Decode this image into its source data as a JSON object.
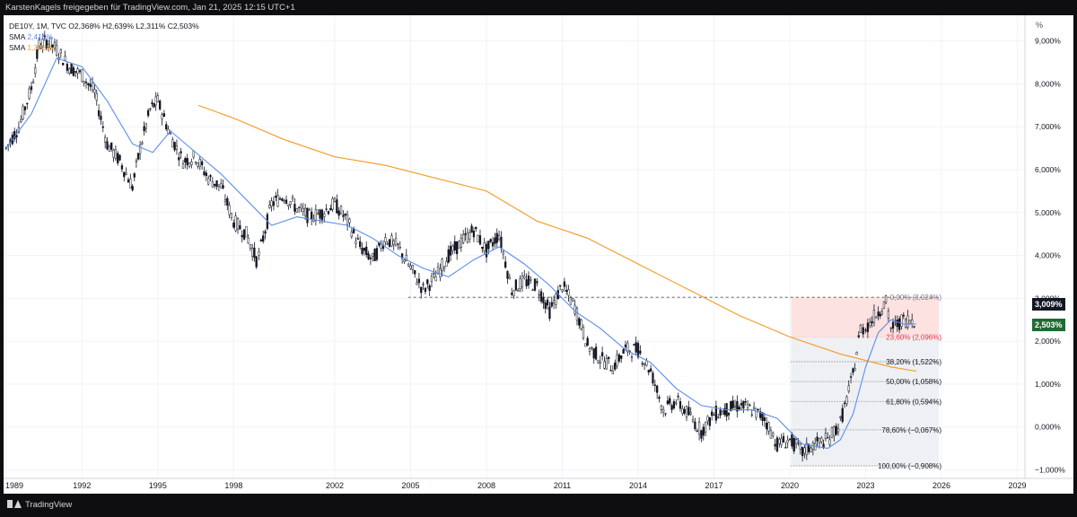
{
  "header": {
    "text": "KarstenKagels freigegeben für TradingView.com, Jan 21, 2025 12:15 UTC+1"
  },
  "legend": {
    "symbol_line": "DE10Y, 1M, TVC  O2,368%  H2,639%  L2,311%  C2,503%",
    "sma1_label": "SMA",
    "sma1_value": "2,410%",
    "sma2_label": "SMA",
    "sma2_value": "1,328%"
  },
  "axis": {
    "unit": "%",
    "price_labels": [
      "9,000%",
      "8,000%",
      "7,000%",
      "6,000%",
      "5,000%",
      "4,000%",
      "3,000%",
      "2,000%",
      "1,000%",
      "0,000%",
      "−1,000%"
    ],
    "year_labels": [
      "1989",
      "1992",
      "1995",
      "1998",
      "2002",
      "2005",
      "2008",
      "2011",
      "2014",
      "2017",
      "2020",
      "2023",
      "2026",
      "2029"
    ]
  },
  "price_badges": {
    "max": "3,009%",
    "last": "2,503%"
  },
  "fib_levels": [
    {
      "label": "0,00% (3,024%)",
      "value": 3.024,
      "color": "#787b86"
    },
    {
      "label": "23,60% (2,096%)",
      "value": 2.096,
      "color": "#f23645"
    },
    {
      "label": "38,20% (1,522%)",
      "value": 1.522,
      "color": "#131722"
    },
    {
      "label": "50,00% (1,058%)",
      "value": 1.058,
      "color": "#131722"
    },
    {
      "label": "61,80% (0,594%)",
      "value": 0.594,
      "color": "#131722"
    },
    {
      "label": "78,60% (−0,067%)",
      "value": -0.067,
      "color": "#131722"
    },
    {
      "label": "100,00% (−0,908%)",
      "value": -0.908,
      "color": "#131722"
    }
  ],
  "footer": {
    "brand": "TradingView"
  },
  "colors": {
    "candle": "#131722",
    "sma_fast": "#5b8def",
    "sma_slow": "#f59a23",
    "fib_zone_top": "#fde2e2",
    "fib_zone_bottom": "#eef0f3"
  },
  "chart_data": {
    "type": "line",
    "title": "DE10Y, 1M, TVC",
    "xlabel": "",
    "ylabel": "%",
    "ylim": [
      -1.2,
      9.6
    ],
    "x_range": [
      1988.9,
      2029.3
    ],
    "y_ticks": [
      9,
      8,
      7,
      6,
      5,
      4,
      3,
      2,
      1,
      0,
      -1
    ],
    "x_ticks": [
      1989,
      1992,
      1995,
      1998,
      2002,
      2005,
      2008,
      2011,
      2014,
      2017,
      2020,
      2023,
      2026,
      2029
    ],
    "grid": true,
    "series": [
      {
        "name": "DE10Y",
        "kind": "close",
        "x": [
          1989.0,
          1989.5,
          1990.0,
          1990.3,
          1990.6,
          1991.0,
          1991.5,
          1992.0,
          1992.5,
          1993.0,
          1993.5,
          1994.0,
          1994.3,
          1994.7,
          1995.0,
          1995.5,
          1996.0,
          1996.5,
          1997.0,
          1997.5,
          1998.0,
          1998.5,
          1998.9,
          1999.0,
          1999.5,
          2000.0,
          2000.5,
          2001.0,
          2001.5,
          2002.0,
          2002.5,
          2003.0,
          2003.5,
          2004.0,
          2004.5,
          2005.0,
          2005.5,
          2006.0,
          2006.5,
          2007.0,
          2007.5,
          2008.0,
          2008.5,
          2009.0,
          2009.5,
          2010.0,
          2010.5,
          2011.0,
          2011.5,
          2012.0,
          2012.5,
          2013.0,
          2013.5,
          2014.0,
          2014.5,
          2015.0,
          2015.5,
          2016.0,
          2016.5,
          2017.0,
          2017.5,
          2018.0,
          2018.5,
          2019.0,
          2019.5,
          2020.0,
          2020.5,
          2021.0,
          2021.5,
          2022.0,
          2022.5,
          2022.8,
          2023.0,
          2023.5,
          2023.8,
          2024.0,
          2024.5,
          2025.0
        ],
        "y": [
          6.5,
          7.0,
          7.9,
          8.9,
          9.0,
          8.8,
          8.4,
          8.2,
          7.8,
          6.6,
          6.2,
          5.6,
          6.5,
          7.4,
          7.6,
          6.8,
          6.2,
          6.3,
          5.8,
          5.6,
          4.8,
          4.5,
          3.9,
          4.0,
          5.2,
          5.4,
          5.1,
          4.9,
          5.0,
          5.2,
          4.8,
          4.2,
          3.9,
          4.4,
          4.2,
          3.7,
          3.2,
          3.5,
          4.0,
          4.3,
          4.6,
          4.1,
          4.5,
          3.2,
          3.4,
          3.3,
          2.7,
          3.3,
          2.8,
          1.9,
          1.6,
          1.4,
          1.8,
          1.8,
          1.3,
          0.4,
          0.6,
          0.3,
          -0.1,
          0.3,
          0.4,
          0.5,
          0.4,
          0.2,
          -0.4,
          -0.3,
          -0.6,
          -0.4,
          -0.3,
          0.1,
          1.2,
          2.3,
          2.3,
          2.7,
          2.9,
          2.3,
          2.5,
          2.5
        ]
      },
      {
        "name": "SMA 2,410%",
        "kind": "sma",
        "x": [
          1989.0,
          1990.0,
          1991.0,
          1992.0,
          1993.0,
          1994.0,
          1994.8,
          1995.5,
          1996.5,
          1997.5,
          1998.5,
          1999.5,
          2000.5,
          2001.5,
          2002.5,
          2003.5,
          2004.5,
          2005.5,
          2006.5,
          2007.5,
          2008.5,
          2009.5,
          2010.5,
          2011.5,
          2012.5,
          2013.5,
          2014.5,
          2015.5,
          2016.5,
          2017.5,
          2018.5,
          2019.5,
          2020.5,
          2021.5,
          2022.0,
          2022.5,
          2023.0,
          2023.5,
          2024.0,
          2024.5,
          2025.0
        ],
        "y": [
          6.5,
          7.3,
          8.6,
          8.4,
          7.6,
          6.6,
          6.4,
          6.9,
          6.4,
          5.9,
          5.3,
          4.7,
          4.9,
          4.8,
          4.7,
          4.4,
          4.0,
          3.7,
          3.5,
          3.9,
          4.2,
          3.8,
          3.3,
          2.7,
          2.3,
          1.8,
          1.5,
          0.9,
          0.5,
          0.4,
          0.4,
          0.2,
          -0.4,
          -0.5,
          -0.3,
          0.3,
          1.4,
          2.2,
          2.5,
          2.4,
          2.4
        ]
      },
      {
        "name": "SMA 1,328%",
        "kind": "sma",
        "x": [
          1996.6,
          1998.0,
          2000.0,
          2002.0,
          2004.0,
          2006.0,
          2008.0,
          2010.0,
          2012.0,
          2014.0,
          2016.0,
          2018.0,
          2020.0,
          2022.0,
          2024.0,
          2025.0
        ],
        "y": [
          7.5,
          7.2,
          6.7,
          6.3,
          6.1,
          5.8,
          5.5,
          4.8,
          4.4,
          3.8,
          3.2,
          2.6,
          2.1,
          1.7,
          1.4,
          1.3
        ]
      }
    ]
  }
}
